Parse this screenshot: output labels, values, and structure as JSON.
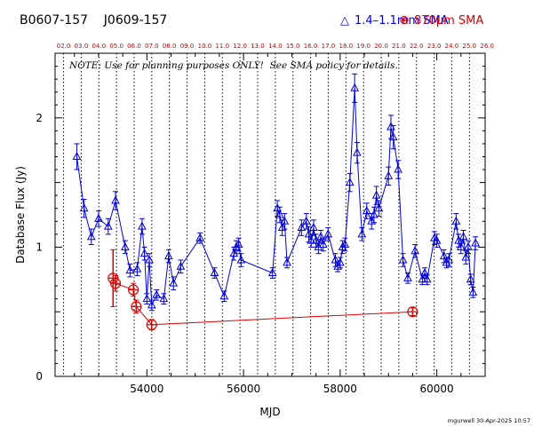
{
  "header": {
    "source_names": "B0607-157    J0609-157",
    "legend_blue_symbol": "△",
    "legend_blue_label": "1.4–1.1mm SMA",
    "legend_red_symbol": "⊕",
    "legend_red_label": "870μm SMA"
  },
  "note": "NOTE: Use for planning purposes ONLY!  See SMA policy for details.",
  "footer": "mgurwell 30-Apr-2025 10:57",
  "colors": {
    "blue": "#0000dd",
    "red": "#dd0000",
    "axis": "#000000",
    "top_axis_labels": "#cc0000"
  },
  "chart_data": {
    "type": "scatter",
    "xlabel": "MJD",
    "ylabel": "Database Flux (Jy)",
    "xlim": [
      52100,
      61000
    ],
    "ylim": [
      0,
      2.5
    ],
    "x_ticks": [
      54000,
      56000,
      58000,
      60000
    ],
    "y_ticks": [
      0,
      1,
      2
    ],
    "top_axis_ticks": [
      "02.0",
      "03.0",
      "04.0",
      "05.0",
      "06.0",
      "07.0",
      "08.0",
      "09.0",
      "10.0",
      "11.0",
      "12.0",
      "13.0",
      "14.0",
      "15.0",
      "16.0",
      "17.0",
      "18.0",
      "19.0",
      "20.0",
      "21.0",
      "22.0",
      "23.0",
      "24.0",
      "25.0",
      "26.0"
    ],
    "top_axis_mjd": [
      52276,
      52641,
      53006,
      53371,
      53736,
      54101,
      54466,
      54831,
      55197,
      55562,
      55927,
      56292,
      56658,
      57023,
      57388,
      57753,
      58119,
      58484,
      58849,
      59214,
      59580,
      59945,
      60310,
      60675,
      61041
    ],
    "series": [
      {
        "name": "1.4–1.1mm SMA",
        "marker": "triangle",
        "x": [
          52550,
          52700,
          52850,
          53000,
          53200,
          53350,
          53550,
          53650,
          53800,
          53900,
          53950,
          54000,
          54050,
          54100,
          54200,
          54350,
          54450,
          54550,
          54700,
          55100,
          55400,
          55600,
          55800,
          55850,
          55900,
          55950,
          56600,
          56700,
          56750,
          56800,
          56850,
          56900,
          57200,
          57300,
          57350,
          57400,
          57450,
          57500,
          57550,
          57600,
          57650,
          57750,
          57900,
          57950,
          58000,
          58050,
          58100,
          58200,
          58300,
          58350,
          58450,
          58550,
          58650,
          58700,
          58750,
          58800,
          59000,
          59050,
          59100,
          59200,
          59300,
          59400,
          59550,
          59700,
          59750,
          59800,
          59950,
          60000,
          60150,
          60200,
          60250,
          60400,
          60450,
          60500,
          60550,
          60600,
          60650,
          60700,
          60750,
          60800
        ],
        "y": [
          1.7,
          1.3,
          1.08,
          1.22,
          1.16,
          1.36,
          1.0,
          0.82,
          0.83,
          1.16,
          0.95,
          0.6,
          0.9,
          0.55,
          0.63,
          0.6,
          0.93,
          0.72,
          0.85,
          1.07,
          0.8,
          0.62,
          0.95,
          1.0,
          1.02,
          0.9,
          0.8,
          1.3,
          1.25,
          1.15,
          1.2,
          0.88,
          1.15,
          1.2,
          1.1,
          1.05,
          1.15,
          1.05,
          1.0,
          1.08,
          1.02,
          1.1,
          0.9,
          0.85,
          0.88,
          1.0,
          1.02,
          1.5,
          2.23,
          1.73,
          1.1,
          1.28,
          1.2,
          1.25,
          1.4,
          1.3,
          1.55,
          1.93,
          1.85,
          1.6,
          0.9,
          0.76,
          0.97,
          0.75,
          0.8,
          0.75,
          1.07,
          1.05,
          0.93,
          0.88,
          0.9,
          1.2,
          1.05,
          1.0,
          1.08,
          0.92,
          1.0,
          0.75,
          0.65,
          1.03
        ],
        "err": [
          0.1,
          0.07,
          0.06,
          0.06,
          0.06,
          0.07,
          0.05,
          0.05,
          0.05,
          0.06,
          0.05,
          0.04,
          0.05,
          0.04,
          0.04,
          0.04,
          0.05,
          0.05,
          0.05,
          0.04,
          0.04,
          0.04,
          0.05,
          0.05,
          0.05,
          0.05,
          0.04,
          0.06,
          0.06,
          0.06,
          0.06,
          0.04,
          0.06,
          0.06,
          0.06,
          0.05,
          0.06,
          0.05,
          0.05,
          0.05,
          0.05,
          0.05,
          0.05,
          0.04,
          0.04,
          0.05,
          0.05,
          0.07,
          0.11,
          0.08,
          0.05,
          0.06,
          0.06,
          0.06,
          0.07,
          0.06,
          0.07,
          0.09,
          0.09,
          0.07,
          0.05,
          0.04,
          0.05,
          0.04,
          0.04,
          0.04,
          0.05,
          0.05,
          0.05,
          0.04,
          0.05,
          0.06,
          0.05,
          0.05,
          0.05,
          0.05,
          0.05,
          0.04,
          0.04,
          0.05
        ]
      },
      {
        "name": "870μm SMA",
        "marker": "circle-plus",
        "x": [
          53300,
          53350,
          53720,
          53780,
          54100,
          59500
        ],
        "y": [
          0.76,
          0.72,
          0.67,
          0.54,
          0.4,
          0.5
        ],
        "err": [
          0.22,
          0.06,
          0.05,
          0.05,
          0.04,
          0.03
        ]
      }
    ],
    "grid": "vertical dotted at each top-axis year tick"
  }
}
